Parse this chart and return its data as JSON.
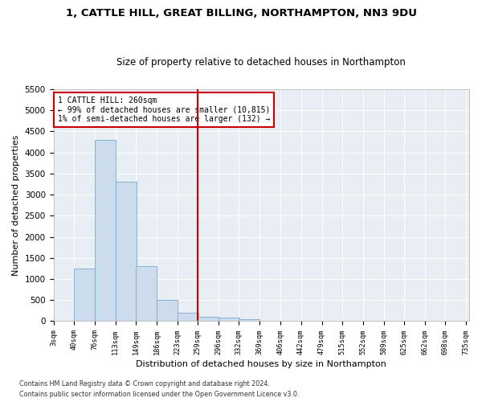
{
  "title": "1, CATTLE HILL, GREAT BILLING, NORTHAMPTON, NN3 9DU",
  "subtitle": "Size of property relative to detached houses in Northampton",
  "xlabel": "Distribution of detached houses by size in Northampton",
  "ylabel": "Number of detached properties",
  "bar_color": "#ccdcec",
  "bar_edge_color": "#7aaac8",
  "background_color": "#e8eef4",
  "grid_color": "#ffffff",
  "vline_x_index": 7,
  "vline_color": "#cc0000",
  "annotation_text": "1 CATTLE HILL: 260sqm\n← 99% of detached houses are smaller (10,815)\n1% of semi-detached houses are larger (132) →",
  "annotation_box_color": "#cc0000",
  "bins_left": [
    3,
    40,
    76,
    113,
    149,
    186,
    223,
    259,
    296,
    332,
    369,
    406,
    442,
    479,
    515,
    552,
    589,
    625,
    662,
    698
  ],
  "bin_width": 37,
  "bar_heights": [
    0,
    1250,
    4300,
    3300,
    1300,
    500,
    200,
    100,
    75,
    50,
    0,
    0,
    0,
    0,
    0,
    0,
    0,
    0,
    0,
    0
  ],
  "ylim": [
    0,
    5500
  ],
  "yticks": [
    0,
    500,
    1000,
    1500,
    2000,
    2500,
    3000,
    3500,
    4000,
    4500,
    5000,
    5500
  ],
  "tick_labels": [
    "3sqm",
    "40sqm",
    "76sqm",
    "113sqm",
    "149sqm",
    "186sqm",
    "223sqm",
    "259sqm",
    "296sqm",
    "332sqm",
    "369sqm",
    "406sqm",
    "442sqm",
    "479sqm",
    "515sqm",
    "552sqm",
    "589sqm",
    "625sqm",
    "662sqm",
    "698sqm",
    "735sqm"
  ],
  "footer1": "Contains HM Land Registry data © Crown copyright and database right 2024.",
  "footer2": "Contains public sector information licensed under the Open Government Licence v3.0."
}
